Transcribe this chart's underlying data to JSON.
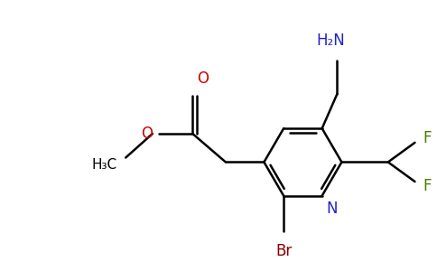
{
  "bg_color": "#ffffff",
  "figsize": [
    4.84,
    3.0
  ],
  "dpi": 100,
  "lw": 1.8,
  "atom_colors": {
    "N": "#2222cc",
    "O": "#cc0000",
    "F": "#4a7a00",
    "Br": "#8b0000",
    "C": "#000000",
    "NH2": "#2222cc"
  }
}
